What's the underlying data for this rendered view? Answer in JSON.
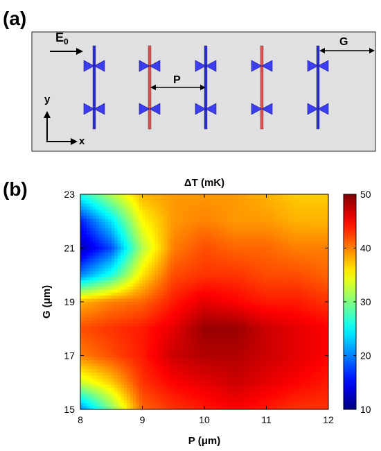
{
  "panel_a": {
    "label": "(a)",
    "e0_label": "E",
    "e0_subscript": "0",
    "p_label": "P",
    "g_label": "G",
    "y_axis_label": "y",
    "x_axis_label": "x",
    "colors": {
      "background": "#e0e0e0",
      "bowtie": "#3d3df2",
      "bar_blue": "#2a2ad4",
      "bar_red": "#e05050"
    }
  },
  "panel_b": {
    "label": "(b)"
  },
  "chart_data": {
    "type": "heatmap",
    "title": "ΔT (mK)",
    "xlabel": "P (μm)",
    "ylabel": "G (μm)",
    "xlim": [
      8,
      12
    ],
    "ylim": [
      15,
      23
    ],
    "x_ticks": [
      "8",
      "9",
      "10",
      "11",
      "12"
    ],
    "y_ticks": [
      "15",
      "17",
      "19",
      "21",
      "23"
    ],
    "colorbar": {
      "range": [
        10,
        50
      ],
      "ticks": [
        "10",
        "20",
        "30",
        "40",
        "50"
      ],
      "colormap": "jet"
    },
    "x": [
      8,
      8.5,
      9,
      9.5,
      10,
      10.5,
      11,
      11.5,
      12
    ],
    "y": [
      15,
      16,
      17,
      18,
      19,
      20,
      21,
      22,
      23
    ],
    "z": [
      [
        20,
        30,
        41,
        43,
        44,
        45,
        44,
        43,
        43
      ],
      [
        33,
        37,
        43,
        45,
        46,
        47,
        46,
        45,
        44
      ],
      [
        40,
        42,
        44,
        47,
        48,
        48,
        47,
        46,
        45
      ],
      [
        42,
        43,
        44,
        46,
        49,
        49,
        47,
        46,
        45
      ],
      [
        38,
        40,
        41,
        44,
        46,
        45,
        44,
        44,
        43
      ],
      [
        20,
        26,
        36,
        42,
        43,
        43,
        42,
        42,
        41
      ],
      [
        12,
        18,
        32,
        40,
        42,
        41,
        41,
        40,
        40
      ],
      [
        16,
        24,
        35,
        39,
        40,
        39,
        39,
        38,
        38
      ],
      [
        26,
        32,
        38,
        39,
        39,
        39,
        38,
        37,
        37
      ]
    ]
  }
}
